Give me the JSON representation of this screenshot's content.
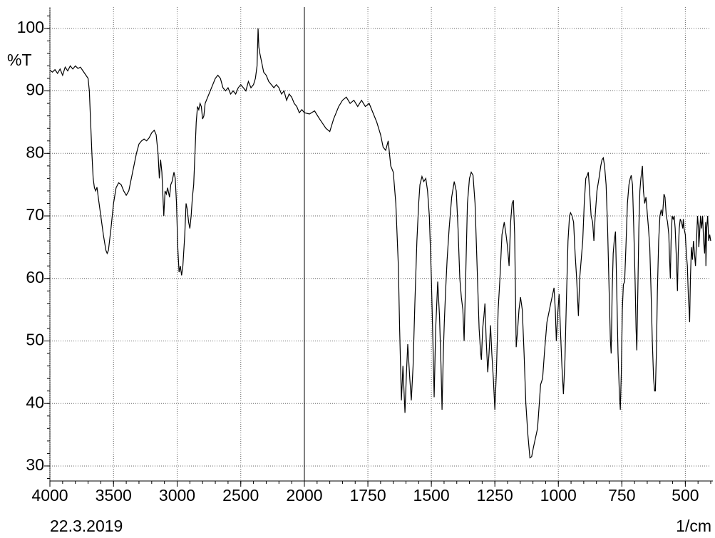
{
  "chart_data": {
    "type": "line",
    "x_label": "1/cm",
    "y_label": "%T",
    "date": "22.3.2019",
    "xlim": [
      4000,
      400
    ],
    "x_scale_break": 2000,
    "xticks": [
      4000,
      3500,
      3000,
      2500,
      2000,
      1750,
      1500,
      1250,
      1000,
      750,
      500
    ],
    "ylim": [
      27.6,
      103.4
    ],
    "yticks": [
      30,
      40,
      50,
      60,
      70,
      80,
      90,
      100
    ],
    "grid": true,
    "color": "#000000",
    "x": [
      4000,
      3980,
      3960,
      3940,
      3920,
      3900,
      3880,
      3860,
      3840,
      3820,
      3800,
      3780,
      3760,
      3740,
      3720,
      3700,
      3690,
      3680,
      3670,
      3660,
      3650,
      3640,
      3630,
      3620,
      3600,
      3580,
      3560,
      3550,
      3540,
      3520,
      3500,
      3480,
      3460,
      3440,
      3420,
      3400,
      3380,
      3360,
      3340,
      3320,
      3300,
      3280,
      3260,
      3240,
      3220,
      3200,
      3180,
      3165,
      3150,
      3140,
      3130,
      3120,
      3105,
      3095,
      3085,
      3075,
      3060,
      3050,
      3040,
      3025,
      3015,
      3005,
      2995,
      2985,
      2975,
      2965,
      2955,
      2940,
      2930,
      2920,
      2910,
      2900,
      2890,
      2880,
      2870,
      2860,
      2850,
      2840,
      2830,
      2820,
      2810,
      2800,
      2790,
      2780,
      2760,
      2740,
      2720,
      2700,
      2680,
      2660,
      2640,
      2620,
      2600,
      2580,
      2560,
      2540,
      2520,
      2500,
      2480,
      2460,
      2440,
      2420,
      2400,
      2385,
      2372,
      2364,
      2358,
      2350,
      2340,
      2320,
      2300,
      2280,
      2260,
      2240,
      2220,
      2200,
      2180,
      2160,
      2140,
      2120,
      2100,
      2080,
      2060,
      2040,
      2020,
      2000,
      1980,
      1960,
      1940,
      1915,
      1900,
      1885,
      1865,
      1850,
      1835,
      1820,
      1805,
      1790,
      1775,
      1760,
      1745,
      1730,
      1715,
      1700,
      1690,
      1680,
      1670,
      1660,
      1650,
      1640,
      1630,
      1625,
      1618,
      1612,
      1604,
      1598,
      1593,
      1585,
      1579,
      1572,
      1565,
      1557,
      1550,
      1545,
      1537,
      1530,
      1522,
      1515,
      1508,
      1500,
      1494,
      1489,
      1483,
      1475,
      1468,
      1462,
      1458,
      1453,
      1449,
      1444,
      1438,
      1430,
      1420,
      1410,
      1402,
      1395,
      1388,
      1382,
      1376,
      1371,
      1365,
      1358,
      1350,
      1343,
      1336,
      1328,
      1320,
      1312,
      1306,
      1303,
      1298,
      1293,
      1289,
      1284,
      1278,
      1273,
      1267,
      1262,
      1256,
      1250,
      1244,
      1237,
      1230,
      1222,
      1213,
      1206,
      1200,
      1194,
      1188,
      1182,
      1177,
      1172,
      1168,
      1166,
      1160,
      1155,
      1149,
      1142,
      1135,
      1128,
      1120,
      1112,
      1105,
      1098,
      1090,
      1082,
      1075,
      1070,
      1062,
      1055,
      1045,
      1030,
      1017,
      1012,
      1008,
      1003,
      997,
      992,
      986,
      980,
      974,
      968,
      962,
      956,
      952,
      946,
      940,
      934,
      928,
      921,
      916,
      910,
      904,
      898,
      892,
      886,
      882,
      877,
      871,
      865,
      860,
      855,
      848,
      840,
      833,
      828,
      823,
      818,
      812,
      806,
      800,
      795,
      792,
      788,
      784,
      780,
      775,
      770,
      765,
      760,
      756,
      752,
      748,
      744,
      739,
      734,
      728,
      722,
      717,
      713,
      708,
      703,
      698,
      694,
      691,
      687,
      683,
      679,
      675,
      672,
      669,
      665,
      660,
      655,
      649,
      645,
      640,
      635,
      630,
      625,
      621,
      618,
      614,
      610,
      605,
      600,
      595,
      590,
      584,
      580,
      575,
      570,
      565,
      562,
      559,
      556,
      552,
      548,
      544,
      540,
      536,
      531,
      528,
      524,
      520,
      515,
      510,
      508,
      505,
      500,
      496,
      492,
      488,
      485,
      483,
      480,
      476,
      472,
      468,
      464,
      460,
      456,
      452,
      448,
      447,
      444,
      440,
      436,
      432,
      428,
      424,
      420,
      419,
      416,
      412,
      408,
      404,
      400
    ],
    "values": [
      93.3,
      93,
      93.4,
      92.8,
      93.5,
      92.5,
      93.8,
      93.2,
      94,
      93.5,
      94,
      93.6,
      93.8,
      93.2,
      92.6,
      92,
      90,
      85,
      80,
      76,
      74.5,
      74,
      74.6,
      73,
      70,
      67,
      64.5,
      64,
      64.5,
      68,
      72,
      74.5,
      75.3,
      75,
      74,
      73.3,
      74,
      76,
      78,
      80,
      81.5,
      82,
      82.3,
      82,
      82.5,
      83.3,
      83.7,
      83,
      80,
      76,
      79,
      77,
      70,
      74,
      73.5,
      74.5,
      73,
      75,
      75.5,
      77,
      76,
      72,
      65,
      61,
      62,
      60.5,
      62,
      67,
      72,
      71,
      69,
      68,
      70,
      73,
      75,
      80,
      85,
      87.5,
      87,
      88,
      87.5,
      85.5,
      86,
      88,
      89,
      90,
      91,
      92,
      92.5,
      92,
      90.5,
      90,
      90.5,
      89.5,
      90,
      89.5,
      90.5,
      91,
      90.5,
      90,
      91.5,
      90.5,
      91,
      92,
      94,
      100,
      97,
      96,
      95,
      93,
      92.5,
      91.5,
      91,
      90.5,
      91,
      90.5,
      89.5,
      90,
      88.5,
      89.5,
      89,
      88,
      87.5,
      86.5,
      87,
      86.5,
      86.3,
      86.8,
      85.5,
      84,
      83.5,
      85.5,
      87.5,
      88.5,
      89,
      88,
      88.5,
      87.5,
      88.5,
      87.5,
      88,
      86.5,
      85,
      83,
      81,
      80.5,
      82,
      78,
      77,
      72,
      62,
      52,
      40.5,
      46,
      38.5,
      45,
      49.5,
      44,
      40.5,
      46,
      56,
      66,
      72,
      75,
      76.3,
      75.5,
      76,
      74,
      70,
      60,
      50,
      41,
      52,
      59.5,
      54,
      46,
      39,
      48,
      53,
      58,
      63,
      68,
      73,
      75.5,
      74,
      68,
      60,
      57,
      55,
      50,
      60,
      72,
      76,
      77,
      76.5,
      72,
      62,
      52,
      48,
      47,
      52,
      54,
      56,
      50,
      45,
      48,
      52.5,
      48,
      44,
      39,
      45,
      55,
      60,
      67,
      69,
      67,
      65,
      62,
      69,
      72,
      72.5,
      67,
      55,
      49,
      52,
      55,
      57,
      55,
      48,
      40,
      35,
      31.3,
      31.5,
      33,
      34.5,
      36,
      40,
      43,
      44,
      48,
      53,
      56,
      58.5,
      55,
      50,
      54,
      57.5,
      52,
      46,
      41.5,
      47,
      57,
      66,
      70,
      70.5,
      70,
      69,
      64,
      60,
      54,
      60,
      63,
      66,
      72,
      76,
      76.5,
      77,
      74,
      70,
      69,
      66,
      70,
      74,
      76,
      78,
      79,
      79.3,
      78,
      75,
      68,
      58,
      50,
      48,
      58,
      64,
      66,
      67.5,
      58,
      48,
      42,
      39,
      45,
      55,
      59,
      59.5,
      65,
      72,
      75,
      76,
      76.5,
      75,
      68,
      60,
      52,
      48.5,
      58,
      68,
      74,
      76,
      77,
      78,
      74,
      72,
      73,
      70,
      68,
      65,
      58,
      50,
      44,
      42,
      42,
      48,
      58,
      66,
      70,
      71,
      70,
      73.5,
      73,
      70,
      69,
      67,
      63,
      60,
      66,
      70,
      69.5,
      70,
      68,
      64,
      58,
      64,
      68,
      69.5,
      69,
      68,
      69.5,
      68,
      67,
      64,
      62,
      57,
      55,
      53,
      60,
      65,
      63,
      66,
      64,
      62,
      66,
      70,
      68,
      65,
      67,
      70,
      68,
      70,
      66,
      64,
      69,
      62,
      68,
      70,
      66,
      67,
      66
    ]
  }
}
